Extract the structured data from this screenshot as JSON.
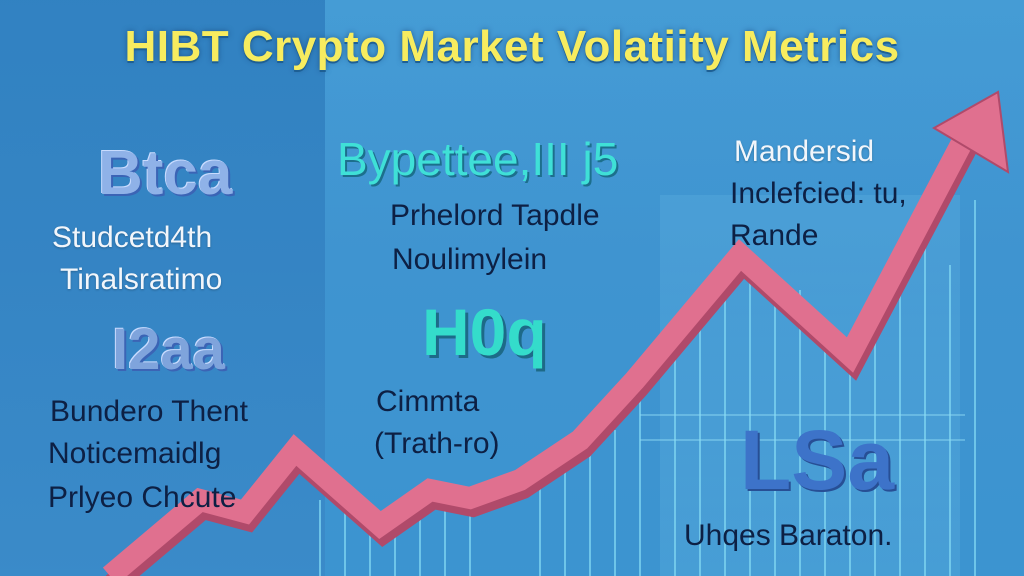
{
  "title": "HIBT Crypto Market Volatiity Metrics",
  "left": {
    "heading": "Btca",
    "line1": "Studcetd4th",
    "line2": "Tinalsratimo",
    "figure": "I2aa",
    "para1": "Bundero Thent",
    "para2": "Noticemaidlg",
    "para3": "Prlyeo Chcute"
  },
  "center": {
    "heading": "Bypettee,III j5",
    "line1": "Prhelord Tapdle",
    "line2": "Noulimylein",
    "figure": "H0q",
    "para1": "Cimmta",
    "para2": "(Trath-ro)"
  },
  "right": {
    "line1": "Mandersid",
    "line2": "Inclefcied: tu,",
    "line3": "Rande",
    "figure": "LSa",
    "caption": "Uhqes Baraton."
  },
  "colors": {
    "title": "#f7ec5f",
    "arrow": "#e0708f",
    "background": "#3f93cf"
  },
  "icons": [
    "trend-arrow-icon"
  ]
}
